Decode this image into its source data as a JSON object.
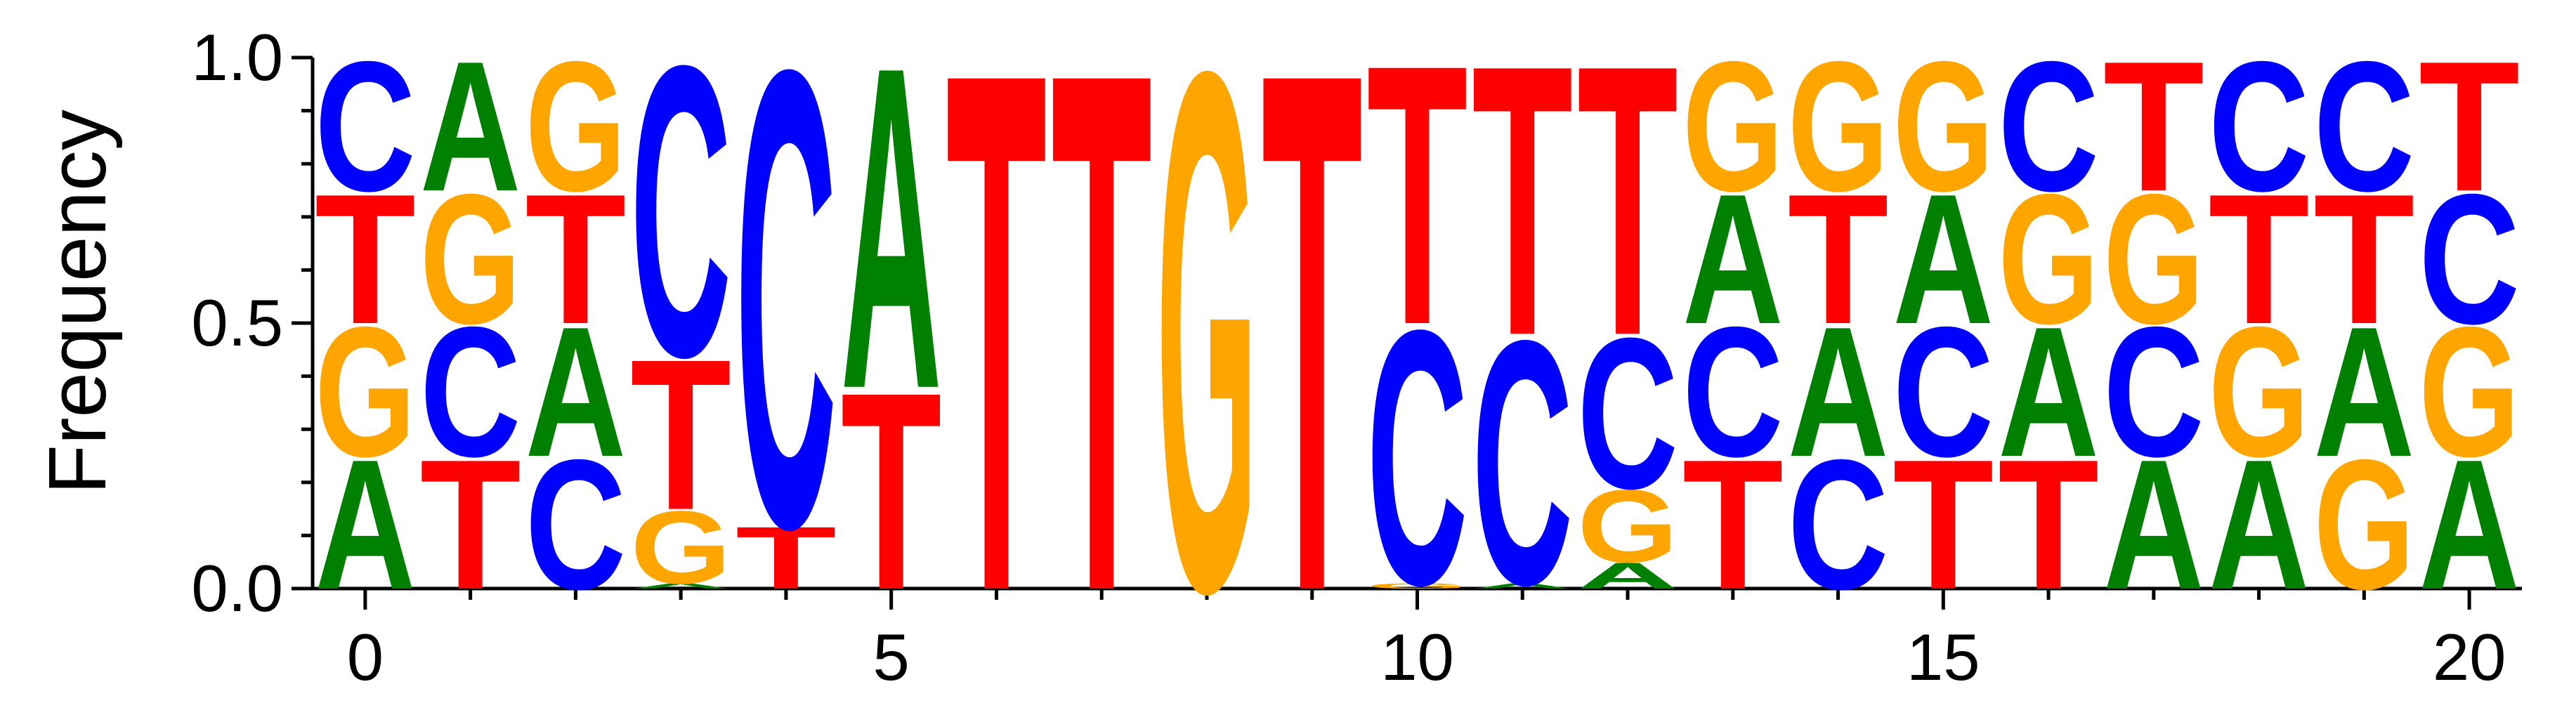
{
  "chart_data": {
    "type": "sequence-logo",
    "ylabel": "Frequency",
    "xlim": [
      -0.5,
      20.5
    ],
    "ylim": [
      0,
      1
    ],
    "x_ticks": [
      "0",
      "5",
      "10",
      "15",
      "20"
    ],
    "y_ticks": [
      "0.0",
      "0.5",
      "1.0"
    ],
    "colors": {
      "A": "#008000",
      "C": "#0000ff",
      "G": "#ffa500",
      "T": "#ff0000"
    },
    "positions": [
      {
        "pos": 0,
        "stack": [
          {
            "base": "A",
            "freq": 0.25
          },
          {
            "base": "G",
            "freq": 0.25
          },
          {
            "base": "T",
            "freq": 0.25
          },
          {
            "base": "C",
            "freq": 0.25
          }
        ]
      },
      {
        "pos": 1,
        "stack": [
          {
            "base": "T",
            "freq": 0.25
          },
          {
            "base": "C",
            "freq": 0.25
          },
          {
            "base": "G",
            "freq": 0.25
          },
          {
            "base": "A",
            "freq": 0.25
          }
        ]
      },
      {
        "pos": 2,
        "stack": [
          {
            "base": "C",
            "freq": 0.25
          },
          {
            "base": "A",
            "freq": 0.25
          },
          {
            "base": "T",
            "freq": 0.25
          },
          {
            "base": "G",
            "freq": 0.25
          }
        ]
      },
      {
        "pos": 3,
        "stack": [
          {
            "base": "A",
            "freq": 0.01
          },
          {
            "base": "G",
            "freq": 0.14
          },
          {
            "base": "T",
            "freq": 0.29
          },
          {
            "base": "C",
            "freq": 0.56
          }
        ]
      },
      {
        "pos": 4,
        "stack": [
          {
            "base": "T",
            "freq": 0.12
          },
          {
            "base": "C",
            "freq": 0.88
          }
        ]
      },
      {
        "pos": 5,
        "stack": [
          {
            "base": "T",
            "freq": 0.38
          },
          {
            "base": "A",
            "freq": 0.62
          }
        ]
      },
      {
        "pos": 6,
        "stack": [
          {
            "base": "T",
            "freq": 1.0
          }
        ]
      },
      {
        "pos": 7,
        "stack": [
          {
            "base": "T",
            "freq": 1.0
          }
        ]
      },
      {
        "pos": 8,
        "stack": [
          {
            "base": "G",
            "freq": 1.0
          }
        ]
      },
      {
        "pos": 9,
        "stack": [
          {
            "base": "T",
            "freq": 1.0
          }
        ]
      },
      {
        "pos": 10,
        "stack": [
          {
            "base": "G",
            "freq": 0.01
          },
          {
            "base": "C",
            "freq": 0.49
          },
          {
            "base": "T",
            "freq": 0.5
          }
        ]
      },
      {
        "pos": 11,
        "stack": [
          {
            "base": "A",
            "freq": 0.01
          },
          {
            "base": "C",
            "freq": 0.47
          },
          {
            "base": "T",
            "freq": 0.52
          }
        ]
      },
      {
        "pos": 12,
        "stack": [
          {
            "base": "A",
            "freq": 0.05
          },
          {
            "base": "G",
            "freq": 0.14
          },
          {
            "base": "C",
            "freq": 0.29
          },
          {
            "base": "T",
            "freq": 0.52
          }
        ]
      },
      {
        "pos": 13,
        "stack": [
          {
            "base": "T",
            "freq": 0.25
          },
          {
            "base": "C",
            "freq": 0.25
          },
          {
            "base": "A",
            "freq": 0.25
          },
          {
            "base": "G",
            "freq": 0.25
          }
        ]
      },
      {
        "pos": 14,
        "stack": [
          {
            "base": "C",
            "freq": 0.25
          },
          {
            "base": "A",
            "freq": 0.25
          },
          {
            "base": "T",
            "freq": 0.25
          },
          {
            "base": "G",
            "freq": 0.25
          }
        ]
      },
      {
        "pos": 15,
        "stack": [
          {
            "base": "T",
            "freq": 0.25
          },
          {
            "base": "C",
            "freq": 0.25
          },
          {
            "base": "A",
            "freq": 0.25
          },
          {
            "base": "G",
            "freq": 0.25
          }
        ]
      },
      {
        "pos": 16,
        "stack": [
          {
            "base": "T",
            "freq": 0.25
          },
          {
            "base": "A",
            "freq": 0.25
          },
          {
            "base": "G",
            "freq": 0.25
          },
          {
            "base": "C",
            "freq": 0.25
          }
        ]
      },
      {
        "pos": 17,
        "stack": [
          {
            "base": "A",
            "freq": 0.25
          },
          {
            "base": "C",
            "freq": 0.25
          },
          {
            "base": "G",
            "freq": 0.25
          },
          {
            "base": "T",
            "freq": 0.25
          }
        ]
      },
      {
        "pos": 18,
        "stack": [
          {
            "base": "A",
            "freq": 0.25
          },
          {
            "base": "G",
            "freq": 0.25
          },
          {
            "base": "T",
            "freq": 0.25
          },
          {
            "base": "C",
            "freq": 0.25
          }
        ]
      },
      {
        "pos": 19,
        "stack": [
          {
            "base": "G",
            "freq": 0.25
          },
          {
            "base": "A",
            "freq": 0.25
          },
          {
            "base": "T",
            "freq": 0.25
          },
          {
            "base": "C",
            "freq": 0.25
          }
        ]
      },
      {
        "pos": 20,
        "stack": [
          {
            "base": "A",
            "freq": 0.25
          },
          {
            "base": "G",
            "freq": 0.25
          },
          {
            "base": "C",
            "freq": 0.25
          },
          {
            "base": "T",
            "freq": 0.25
          }
        ]
      }
    ]
  }
}
